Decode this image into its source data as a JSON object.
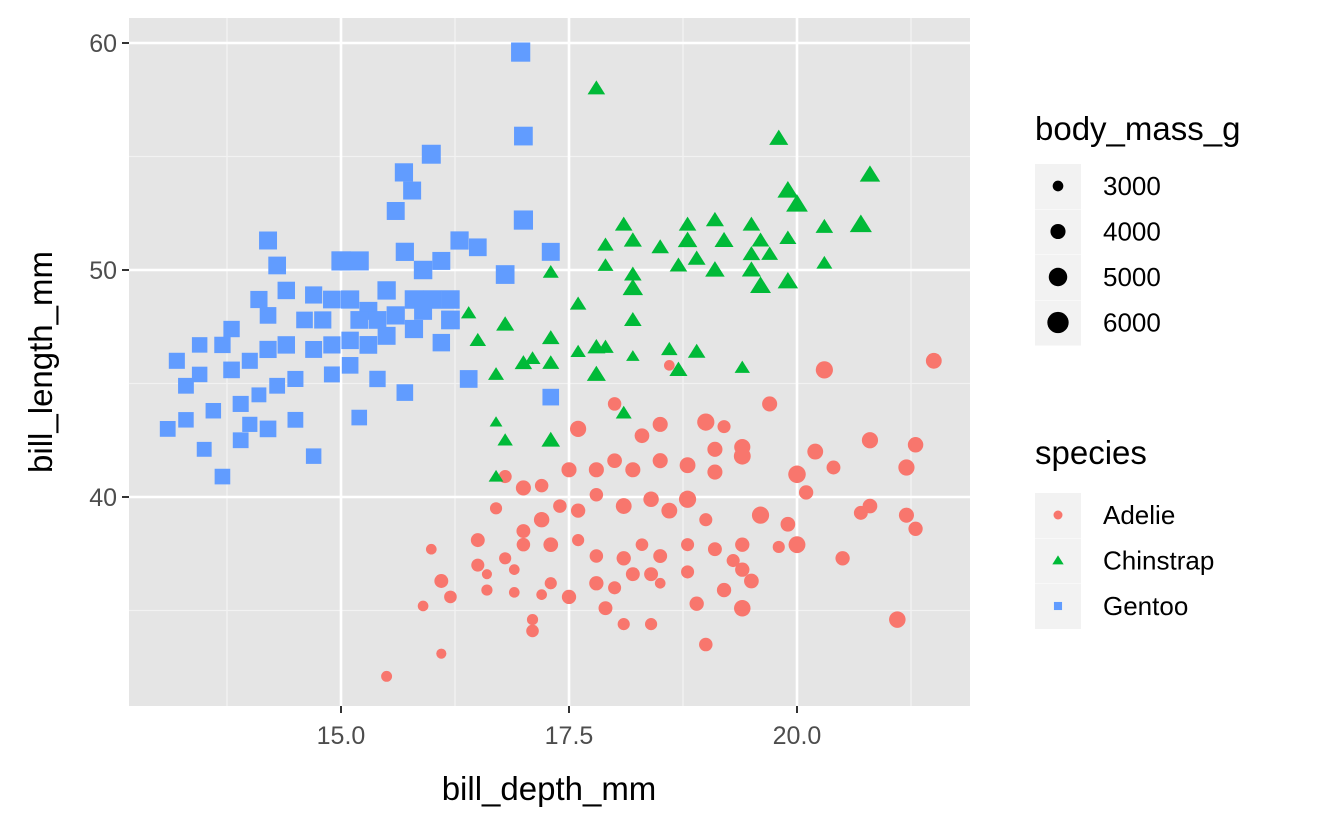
{
  "chart_data": {
    "type": "scatter",
    "xlabel": "bill_depth_mm",
    "ylabel": "bill_length_mm",
    "xlim": [
      13.0,
      21.9
    ],
    "ylim": [
      30.9,
      61.1
    ],
    "x_ticks": [
      "15.0",
      "17.5",
      "20.0"
    ],
    "y_ticks": [
      "40",
      "50",
      "60"
    ],
    "grid": true,
    "panel_background": "#e5e5e5",
    "legend_position": "right",
    "size_legend": {
      "title": "body_mass_g",
      "values": [
        3000,
        4000,
        5000,
        6000
      ],
      "labels": [
        "3000",
        "4000",
        "5000",
        "6000"
      ]
    },
    "color_legend": {
      "title": "species",
      "labels": [
        "Adelie",
        "Chinstrap",
        "Gentoo"
      ]
    },
    "series": [
      {
        "name": "Adelie",
        "shape": "circle",
        "color": "#F8766D",
        "points_note_format": "[bill_depth_mm, bill_length_mm, body_mass_g]",
        "points": [
          [
            21.5,
            46.0,
            4200
          ],
          [
            20.3,
            45.6,
            4600
          ],
          [
            19.7,
            44.1,
            4000
          ],
          [
            18.0,
            44.1,
            3600
          ],
          [
            17.6,
            43.0,
            4300
          ],
          [
            18.5,
            43.2,
            4000
          ],
          [
            19.0,
            43.3,
            4600
          ],
          [
            19.2,
            43.1,
            3500
          ],
          [
            21.3,
            42.3,
            4100
          ],
          [
            20.8,
            42.5,
            4300
          ],
          [
            20.2,
            42.0,
            4200
          ],
          [
            19.4,
            42.2,
            4300
          ],
          [
            19.4,
            41.8,
            4500
          ],
          [
            19.1,
            42.1,
            4000
          ],
          [
            18.3,
            42.7,
            3900
          ],
          [
            18.0,
            41.6,
            3900
          ],
          [
            18.5,
            41.6,
            4000
          ],
          [
            18.8,
            41.4,
            4200
          ],
          [
            19.1,
            41.1,
            4000
          ],
          [
            17.5,
            41.2,
            4000
          ],
          [
            17.8,
            41.2,
            4000
          ],
          [
            18.2,
            41.2,
            4000
          ],
          [
            20.0,
            41.0,
            4700
          ],
          [
            21.2,
            41.3,
            4300
          ],
          [
            20.4,
            41.3,
            3700
          ],
          [
            16.8,
            40.9,
            3500
          ],
          [
            17.0,
            40.4,
            4000
          ],
          [
            17.2,
            40.5,
            3600
          ],
          [
            20.1,
            40.2,
            3800
          ],
          [
            20.8,
            39.6,
            3900
          ],
          [
            20.7,
            39.3,
            3700
          ],
          [
            21.2,
            39.2,
            4000
          ],
          [
            21.3,
            38.6,
            3800
          ],
          [
            19.9,
            38.8,
            3900
          ],
          [
            19.6,
            39.2,
            4600
          ],
          [
            19.0,
            39.0,
            3500
          ],
          [
            18.8,
            39.9,
            4600
          ],
          [
            18.6,
            39.4,
            4200
          ],
          [
            18.4,
            39.9,
            4100
          ],
          [
            18.1,
            39.6,
            4200
          ],
          [
            17.8,
            40.1,
            3600
          ],
          [
            17.6,
            39.4,
            3800
          ],
          [
            17.4,
            39.6,
            3600
          ],
          [
            17.2,
            39.0,
            4100
          ],
          [
            17.0,
            38.5,
            3700
          ],
          [
            16.7,
            39.5,
            3300
          ],
          [
            16.5,
            38.1,
            3700
          ],
          [
            16.8,
            37.3,
            3300
          ],
          [
            17.0,
            37.9,
            3600
          ],
          [
            17.3,
            37.9,
            3900
          ],
          [
            17.6,
            38.1,
            3300
          ],
          [
            17.8,
            37.4,
            3600
          ],
          [
            18.1,
            37.3,
            3800
          ],
          [
            18.3,
            37.9,
            3400
          ],
          [
            18.5,
            37.4,
            3700
          ],
          [
            18.8,
            37.9,
            3500
          ],
          [
            19.1,
            37.7,
            3700
          ],
          [
            19.3,
            37.2,
            3500
          ],
          [
            19.4,
            37.9,
            3800
          ],
          [
            19.8,
            37.8,
            3300
          ],
          [
            20.0,
            37.9,
            4500
          ],
          [
            20.5,
            37.3,
            3800
          ],
          [
            15.99,
            37.7,
            3000
          ],
          [
            16.5,
            37.0,
            3500
          ],
          [
            16.6,
            36.6,
            2900
          ],
          [
            16.9,
            36.8,
            3000
          ],
          [
            17.3,
            36.2,
            3300
          ],
          [
            17.8,
            36.2,
            3800
          ],
          [
            18.2,
            36.6,
            3700
          ],
          [
            18.4,
            36.6,
            3700
          ],
          [
            18.8,
            36.7,
            3500
          ],
          [
            19.4,
            36.8,
            3800
          ],
          [
            19.5,
            36.3,
            3900
          ],
          [
            19.2,
            35.9,
            3800
          ],
          [
            18.5,
            36.2,
            3000
          ],
          [
            16.1,
            36.3,
            3700
          ],
          [
            16.2,
            35.6,
            3400
          ],
          [
            16.6,
            35.9,
            3100
          ],
          [
            16.9,
            35.8,
            3000
          ],
          [
            17.2,
            35.7,
            3000
          ],
          [
            17.5,
            35.6,
            3800
          ],
          [
            17.9,
            35.1,
            3700
          ],
          [
            18.9,
            35.3,
            3800
          ],
          [
            19.4,
            35.1,
            4400
          ],
          [
            18.0,
            36.0,
            3500
          ],
          [
            15.9,
            35.2,
            3000
          ],
          [
            17.1,
            34.6,
            3100
          ],
          [
            17.1,
            34.1,
            3400
          ],
          [
            18.1,
            34.4,
            3300
          ],
          [
            18.4,
            34.4,
            3300
          ],
          [
            21.1,
            34.6,
            4400
          ],
          [
            19.0,
            33.5,
            3600
          ],
          [
            16.1,
            33.1,
            2900
          ],
          [
            15.5,
            32.1,
            3050
          ],
          [
            18.6,
            45.8,
            3000
          ]
        ]
      },
      {
        "name": "Chinstrap",
        "shape": "triangle",
        "color": "#00BA38",
        "points": [
          [
            17.8,
            58.0,
            3700
          ],
          [
            19.8,
            55.8,
            4000
          ],
          [
            20.8,
            54.2,
            4300
          ],
          [
            19.9,
            53.5,
            4400
          ],
          [
            20.0,
            52.9,
            4600
          ],
          [
            20.7,
            52.0,
            4700
          ],
          [
            20.3,
            51.9,
            3700
          ],
          [
            19.5,
            52.0,
            3700
          ],
          [
            19.1,
            52.2,
            3800
          ],
          [
            18.8,
            52.0,
            3700
          ],
          [
            18.1,
            52.0,
            3700
          ],
          [
            18.2,
            51.3,
            3800
          ],
          [
            17.9,
            51.1,
            3500
          ],
          [
            17.9,
            50.2,
            3400
          ],
          [
            18.5,
            51.0,
            3700
          ],
          [
            18.8,
            51.3,
            4100
          ],
          [
            19.2,
            51.3,
            4000
          ],
          [
            19.6,
            51.3,
            3700
          ],
          [
            19.9,
            51.4,
            3600
          ],
          [
            19.5,
            50.7,
            3700
          ],
          [
            19.7,
            50.7,
            3550
          ],
          [
            20.3,
            50.3,
            3400
          ],
          [
            17.3,
            49.9,
            3400
          ],
          [
            18.2,
            49.8,
            3700
          ],
          [
            18.2,
            49.2,
            4300
          ],
          [
            18.7,
            50.2,
            3700
          ],
          [
            18.9,
            50.5,
            3750
          ],
          [
            19.1,
            50.0,
            4100
          ],
          [
            19.5,
            50.0,
            4000
          ],
          [
            19.6,
            49.3,
            4400
          ],
          [
            19.9,
            49.5,
            4300
          ],
          [
            17.6,
            48.5,
            3500
          ],
          [
            16.4,
            48.1,
            3300
          ],
          [
            16.8,
            47.6,
            3800
          ],
          [
            17.3,
            47.0,
            3700
          ],
          [
            16.5,
            46.9,
            3500
          ],
          [
            18.2,
            47.8,
            3700
          ],
          [
            17.8,
            46.6,
            3800
          ],
          [
            17.9,
            46.6,
            3500
          ],
          [
            17.6,
            46.4,
            3300
          ],
          [
            18.6,
            46.5,
            3500
          ],
          [
            18.9,
            46.4,
            3700
          ],
          [
            18.2,
            46.2,
            3000
          ],
          [
            17.0,
            45.9,
            3700
          ],
          [
            17.3,
            45.9,
            3600
          ],
          [
            17.1,
            46.1,
            3400
          ],
          [
            16.7,
            45.4,
            3400
          ],
          [
            17.8,
            45.4,
            4000
          ],
          [
            18.7,
            45.6,
            3800
          ],
          [
            19.4,
            45.7,
            3300
          ],
          [
            18.1,
            43.7,
            3400
          ],
          [
            16.7,
            43.3,
            2900
          ],
          [
            16.8,
            42.5,
            3300
          ],
          [
            17.3,
            42.5,
            3900
          ],
          [
            16.7,
            40.9,
            3200
          ]
        ]
      },
      {
        "name": "Gentoo",
        "shape": "square",
        "color": "#619CFF",
        "points": [
          [
            16.97,
            59.6,
            6000
          ],
          [
            17.0,
            55.9,
            5800
          ],
          [
            15.99,
            55.1,
            5900
          ],
          [
            15.69,
            54.3,
            5600
          ],
          [
            15.78,
            53.5,
            5500
          ],
          [
            15.6,
            52.6,
            5500
          ],
          [
            17.0,
            52.2,
            6000
          ],
          [
            17.3,
            50.8,
            5500
          ],
          [
            14.2,
            51.3,
            5500
          ],
          [
            14.3,
            50.2,
            5400
          ],
          [
            16.8,
            49.8,
            5800
          ],
          [
            15.0,
            50.4,
            6000
          ],
          [
            15.2,
            50.4,
            5950
          ],
          [
            15.7,
            50.8,
            5600
          ],
          [
            16.3,
            51.3,
            5600
          ],
          [
            16.5,
            51.0,
            5400
          ],
          [
            16.1,
            50.4,
            5500
          ],
          [
            15.9,
            50.0,
            5700
          ],
          [
            14.1,
            48.7,
            5200
          ],
          [
            14.4,
            49.1,
            5300
          ],
          [
            14.7,
            48.9,
            5200
          ],
          [
            14.9,
            48.7,
            5400
          ],
          [
            15.1,
            48.7,
            5600
          ],
          [
            15.3,
            48.2,
            5500
          ],
          [
            15.5,
            49.1,
            5650
          ],
          [
            15.8,
            48.7,
            5700
          ],
          [
            16.0,
            48.7,
            5700
          ],
          [
            16.1,
            46.8,
            5300
          ],
          [
            13.8,
            47.4,
            4900
          ],
          [
            13.7,
            46.7,
            4900
          ],
          [
            13.45,
            46.7,
            4600
          ],
          [
            13.2,
            46.0,
            4800
          ],
          [
            13.3,
            44.9,
            4700
          ],
          [
            13.45,
            45.4,
            4600
          ],
          [
            13.8,
            45.6,
            5000
          ],
          [
            14.0,
            46.0,
            4800
          ],
          [
            14.2,
            46.5,
            5200
          ],
          [
            14.4,
            46.7,
            5300
          ],
          [
            14.7,
            46.5,
            5100
          ],
          [
            14.9,
            46.7,
            5200
          ],
          [
            15.1,
            46.9,
            5300
          ],
          [
            15.3,
            46.7,
            5400
          ],
          [
            15.5,
            47.1,
            5500
          ],
          [
            15.8,
            47.4,
            5600
          ],
          [
            13.1,
            43.0,
            4700
          ],
          [
            13.3,
            43.4,
            4600
          ],
          [
            13.6,
            43.8,
            4600
          ],
          [
            13.9,
            44.1,
            4800
          ],
          [
            14.2,
            43.0,
            5000
          ],
          [
            14.5,
            43.4,
            4700
          ],
          [
            13.5,
            42.1,
            4400
          ],
          [
            13.7,
            40.9,
            4650
          ],
          [
            14.7,
            41.8,
            4600
          ],
          [
            15.2,
            43.5,
            4650
          ],
          [
            15.7,
            44.6,
            5000
          ],
          [
            15.4,
            45.2,
            4900
          ],
          [
            16.4,
            45.2,
            5400
          ],
          [
            17.3,
            44.4,
            5000
          ],
          [
            14.3,
            44.9,
            4700
          ],
          [
            14.1,
            44.5,
            4400
          ],
          [
            14.9,
            45.4,
            4750
          ],
          [
            15.1,
            45.8,
            5000
          ],
          [
            14.5,
            45.2,
            4800
          ],
          [
            13.9,
            42.5,
            4700
          ],
          [
            14.0,
            43.2,
            4500
          ],
          [
            14.8,
            47.8,
            5200
          ],
          [
            14.6,
            47.8,
            5000
          ],
          [
            14.2,
            48.0,
            5000
          ],
          [
            15.2,
            47.8,
            5400
          ],
          [
            15.4,
            47.8,
            5400
          ],
          [
            15.6,
            48.0,
            5600
          ],
          [
            15.9,
            48.2,
            5500
          ],
          [
            16.2,
            48.7,
            5700
          ],
          [
            16.2,
            47.8,
            5800
          ]
        ]
      }
    ]
  }
}
